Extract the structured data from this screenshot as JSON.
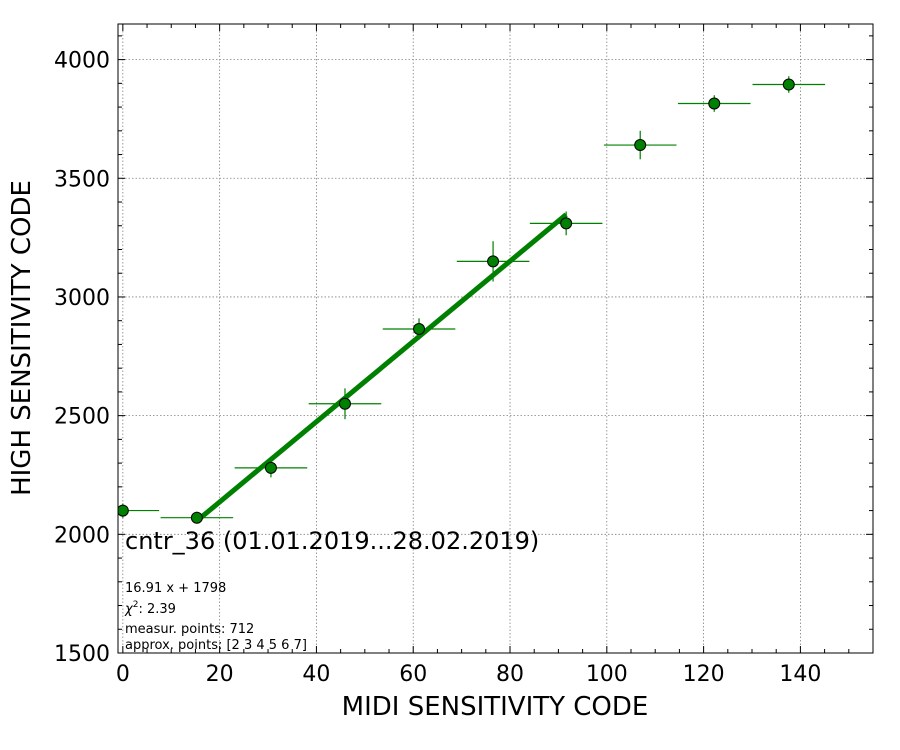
{
  "chart_data": {
    "type": "scatter",
    "xlabel": "MIDI SENSITIVITY CODE",
    "ylabel": "HIGH SENSITIVITY CODE",
    "xlim": [
      -1,
      155
    ],
    "ylim": [
      1500,
      4150
    ],
    "xticks": [
      0,
      20,
      40,
      60,
      80,
      100,
      120,
      140
    ],
    "yticks": [
      1500,
      2000,
      2500,
      3000,
      3500,
      4000
    ],
    "grid": true,
    "colors": {
      "points": "#008000",
      "fit": "#008000",
      "grid": "#808080"
    },
    "points": [
      {
        "x": 0.0,
        "y": 2100,
        "xerr": 7.5,
        "yerr": 30
      },
      {
        "x": 15.3,
        "y": 2070,
        "xerr": 7.5,
        "yerr": 25
      },
      {
        "x": 30.6,
        "y": 2280,
        "xerr": 7.5,
        "yerr": 40
      },
      {
        "x": 45.9,
        "y": 2550,
        "xerr": 7.5,
        "yerr": 65
      },
      {
        "x": 61.2,
        "y": 2865,
        "xerr": 7.5,
        "yerr": 45
      },
      {
        "x": 76.5,
        "y": 3150,
        "xerr": 7.5,
        "yerr": 85
      },
      {
        "x": 91.6,
        "y": 3310,
        "xerr": 7.5,
        "yerr": 50
      },
      {
        "x": 106.9,
        "y": 3640,
        "xerr": 7.5,
        "yerr": 60
      },
      {
        "x": 122.2,
        "y": 3815,
        "xerr": 7.5,
        "yerr": 35
      },
      {
        "x": 137.6,
        "y": 3895,
        "xerr": 7.5,
        "yerr": 35
      }
    ],
    "fit": {
      "slope": 16.91,
      "intercept": 1798,
      "x_range": [
        15.3,
        91.6
      ]
    },
    "annotations": {
      "title": "cntr_36 (01.01.2019...28.02.2019)",
      "equation": "16.91 x + 1798",
      "chi2_label": "2.39",
      "measur_points": "measur. points: 712",
      "approx_points": "approx. points: [2 3 4 5 6 7]"
    }
  }
}
